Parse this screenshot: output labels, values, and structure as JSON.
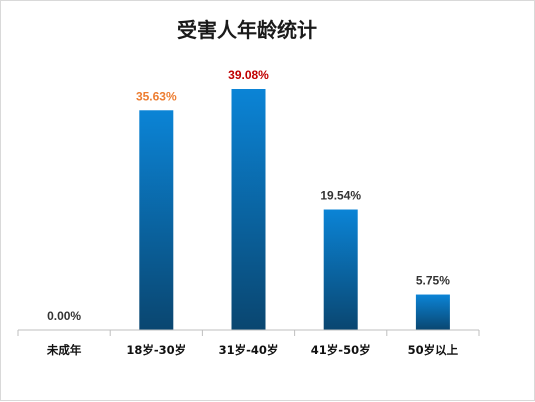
{
  "chart_data": {
    "type": "bar",
    "title": "受害人年龄统计",
    "categories": [
      "未成年",
      "18岁-30岁",
      "31岁-40岁",
      "41岁-50岁",
      "50岁以上"
    ],
    "values": [
      0.0,
      35.63,
      39.08,
      19.54,
      5.75
    ],
    "data_labels": [
      "0.00%",
      "35.63%",
      "39.08%",
      "19.54%",
      "5.75%"
    ],
    "label_colors": [
      "#333333",
      "#ed7d31",
      "#c00000",
      "#333333",
      "#333333"
    ],
    "bar_color_top": "#0b84d6",
    "bar_color_bottom": "#0a4670",
    "ylim": [
      0,
      42
    ],
    "grid": false,
    "legend": "none"
  }
}
